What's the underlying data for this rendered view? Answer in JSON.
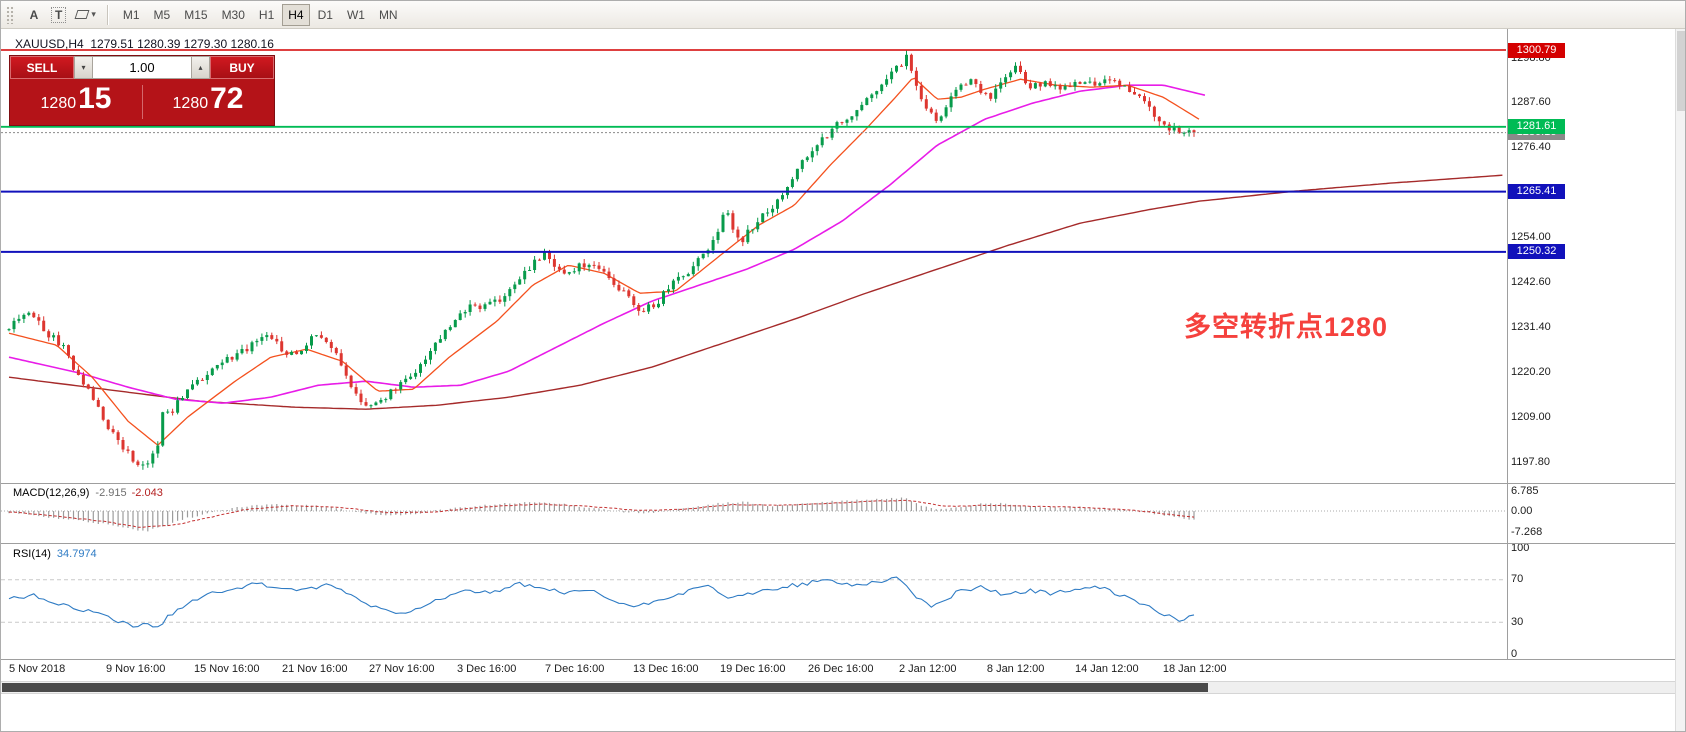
{
  "toolbar": {
    "annotate_label": "A",
    "textbox_label": "T",
    "timeframes": [
      "M1",
      "M5",
      "M15",
      "M30",
      "H1",
      "H4",
      "D1",
      "W1",
      "MN"
    ],
    "active_timeframe": "H4"
  },
  "chart": {
    "title": "XAUUSD,H4  1279.51 1280.39 1279.30 1280.16",
    "annotation": {
      "text": "多空转折点1280",
      "color": "#f5413d"
    },
    "trade_panel": {
      "sell_label": "SELL",
      "buy_label": "BUY",
      "volume": "1.00",
      "sell_price_main": "1280",
      "sell_price_big": "15",
      "buy_price_main": "1280",
      "buy_price_big": "72"
    }
  },
  "indicators": {
    "macd": {
      "label": "MACD(12,26,9)",
      "value_main": "-2.915",
      "value_signal": "-2.043",
      "axis": [
        {
          "v": 6.785,
          "label": "6.785"
        },
        {
          "v": 0,
          "label": "0.00"
        },
        {
          "v": -7.268,
          "label": "-7.268"
        }
      ]
    },
    "rsi": {
      "label": "RSI(14)",
      "value": "34.7974",
      "axis": [
        {
          "v": 100,
          "label": "100"
        },
        {
          "v": 70,
          "label": "70"
        },
        {
          "v": 30,
          "label": "30"
        },
        {
          "v": 0,
          "label": "0"
        }
      ]
    }
  },
  "chart_data": {
    "type": "candlestick",
    "symbol": "XAUUSD",
    "timeframe": "H4",
    "last_ohlc": {
      "open": 1279.51,
      "high": 1280.39,
      "low": 1279.3,
      "close": 1280.16
    },
    "colors": {
      "up": "#089b4b",
      "down": "#dd3630",
      "ma_fast": "#f4511e",
      "ma_mid": "#e81ce8",
      "ma_slow": "#a52a2a",
      "macd_hist": "#9c9c9c",
      "macd_signal": "#c43131",
      "rsi": "#2e7bc4"
    },
    "y_ticks": [
      "1298.80",
      "1287.60",
      "1276.40",
      "1254.00",
      "1242.60",
      "1231.40",
      "1220.20",
      "1209.00",
      "1197.80"
    ],
    "levels": [
      {
        "name": "resistance-line",
        "price": 1300.79,
        "label": "1300.79",
        "color": "#d40000",
        "style": "solid",
        "width": 1.6
      },
      {
        "name": "pivot-line",
        "price": 1281.61,
        "label": "1281.61",
        "color": "#00bb55",
        "style": "solid",
        "width": 1.8
      },
      {
        "name": "bid-line",
        "price": 1280.16,
        "label": "1280.16",
        "color": "#8a8a8a",
        "style": "dotted",
        "width": 1
      },
      {
        "name": "support-line-1",
        "price": 1265.41,
        "label": "1265.41",
        "color": "#1111bb",
        "style": "solid",
        "width": 2
      },
      {
        "name": "support-line-2",
        "price": 1250.32,
        "label": "1250.32",
        "color": "#1111bb",
        "style": "solid",
        "width": 2
      }
    ],
    "x_labels": [
      {
        "t": 0.0,
        "label": "5 Nov 2018"
      },
      {
        "t": 0.0815,
        "label": "9 Nov 16:00"
      },
      {
        "t": 0.1555,
        "label": "15 Nov 16:00"
      },
      {
        "t": 0.2294,
        "label": "21 Nov 16:00"
      },
      {
        "t": 0.3025,
        "label": "27 Nov 16:00"
      },
      {
        "t": 0.3765,
        "label": "3 Dec 16:00"
      },
      {
        "t": 0.4504,
        "label": "7 Dec 16:00"
      },
      {
        "t": 0.5244,
        "label": "13 Dec 16:00"
      },
      {
        "t": 0.5975,
        "label": "19 Dec 16:00"
      },
      {
        "t": 0.6714,
        "label": "26 Dec 16:00"
      },
      {
        "t": 0.7479,
        "label": "2 Jan 12:00"
      },
      {
        "t": 0.8218,
        "label": "8 Jan 12:00"
      },
      {
        "t": 0.8958,
        "label": "14 Jan 12:00"
      },
      {
        "t": 0.9697,
        "label": "18 Jan 12:00"
      }
    ],
    "price_path": [
      [
        0.0,
        1231
      ],
      [
        0.01,
        1234
      ],
      [
        0.018,
        1236
      ],
      [
        0.032,
        1230
      ],
      [
        0.045,
        1227
      ],
      [
        0.055,
        1221
      ],
      [
        0.066,
        1216
      ],
      [
        0.077,
        1210
      ],
      [
        0.09,
        1204
      ],
      [
        0.1,
        1200
      ],
      [
        0.108,
        1197.5
      ],
      [
        0.113,
        1196.5
      ],
      [
        0.12,
        1199
      ],
      [
        0.126,
        1201.5
      ],
      [
        0.13,
        1210
      ],
      [
        0.137,
        1210.5
      ],
      [
        0.145,
        1214
      ],
      [
        0.152,
        1216
      ],
      [
        0.163,
        1219
      ],
      [
        0.175,
        1222
      ],
      [
        0.187,
        1224
      ],
      [
        0.2,
        1226
      ],
      [
        0.212,
        1228
      ],
      [
        0.222,
        1229.5
      ],
      [
        0.233,
        1224
      ],
      [
        0.246,
        1226
      ],
      [
        0.259,
        1229.5
      ],
      [
        0.27,
        1228
      ],
      [
        0.281,
        1222
      ],
      [
        0.289,
        1217
      ],
      [
        0.297,
        1213.5
      ],
      [
        0.308,
        1211.5
      ],
      [
        0.32,
        1214.5
      ],
      [
        0.329,
        1217
      ],
      [
        0.338,
        1219.5
      ],
      [
        0.348,
        1222
      ],
      [
        0.358,
        1226
      ],
      [
        0.368,
        1230
      ],
      [
        0.379,
        1234
      ],
      [
        0.389,
        1236.5
      ],
      [
        0.402,
        1237
      ],
      [
        0.414,
        1238.5
      ],
      [
        0.425,
        1241.5
      ],
      [
        0.436,
        1245
      ],
      [
        0.444,
        1248
      ],
      [
        0.452,
        1250.5
      ],
      [
        0.461,
        1247
      ],
      [
        0.47,
        1245
      ],
      [
        0.48,
        1246.5
      ],
      [
        0.49,
        1247.5
      ],
      [
        0.501,
        1245
      ],
      [
        0.511,
        1242.5
      ],
      [
        0.52,
        1239.5
      ],
      [
        0.529,
        1236.5
      ],
      [
        0.538,
        1236
      ],
      [
        0.546,
        1237.5
      ],
      [
        0.555,
        1240.5
      ],
      [
        0.564,
        1243.5
      ],
      [
        0.573,
        1245.5
      ],
      [
        0.581,
        1248
      ],
      [
        0.59,
        1251
      ],
      [
        0.598,
        1256
      ],
      [
        0.606,
        1261.5
      ],
      [
        0.612,
        1255
      ],
      [
        0.617,
        1252
      ],
      [
        0.624,
        1255.5
      ],
      [
        0.631,
        1258
      ],
      [
        0.639,
        1260
      ],
      [
        0.647,
        1262.5
      ],
      [
        0.655,
        1266
      ],
      [
        0.664,
        1270
      ],
      [
        0.673,
        1274
      ],
      [
        0.681,
        1277
      ],
      [
        0.69,
        1279.5
      ],
      [
        0.699,
        1282
      ],
      [
        0.708,
        1284
      ],
      [
        0.717,
        1286.5
      ],
      [
        0.726,
        1289.5
      ],
      [
        0.735,
        1292
      ],
      [
        0.744,
        1294.5
      ],
      [
        0.752,
        1297
      ],
      [
        0.758,
        1299.2
      ],
      [
        0.764,
        1293
      ],
      [
        0.771,
        1288
      ],
      [
        0.778,
        1284.5
      ],
      [
        0.784,
        1282.5
      ],
      [
        0.79,
        1286
      ],
      [
        0.797,
        1290
      ],
      [
        0.805,
        1292.5
      ],
      [
        0.813,
        1293.5
      ],
      [
        0.82,
        1291
      ],
      [
        0.827,
        1288.5
      ],
      [
        0.834,
        1291.5
      ],
      [
        0.841,
        1294.5
      ],
      [
        0.848,
        1296.5
      ],
      [
        0.855,
        1294.5
      ],
      [
        0.862,
        1291.5
      ],
      [
        0.871,
        1292
      ],
      [
        0.88,
        1292.5
      ],
      [
        0.889,
        1291.5
      ],
      [
        0.898,
        1292
      ],
      [
        0.907,
        1292.5
      ],
      [
        0.916,
        1292.5
      ],
      [
        0.925,
        1293
      ],
      [
        0.934,
        1292.5
      ],
      [
        0.943,
        1291.5
      ],
      [
        0.952,
        1289
      ],
      [
        0.961,
        1286.5
      ],
      [
        0.97,
        1284
      ],
      [
        0.979,
        1281.5
      ],
      [
        0.988,
        1280.5
      ],
      [
        1.0,
        1280.2
      ]
    ],
    "ma_fast": [
      [
        0,
        1230
      ],
      [
        0.04,
        1227
      ],
      [
        0.07,
        1219
      ],
      [
        0.1,
        1208
      ],
      [
        0.125,
        1202
      ],
      [
        0.15,
        1209
      ],
      [
        0.19,
        1218
      ],
      [
        0.22,
        1224
      ],
      [
        0.25,
        1226
      ],
      [
        0.28,
        1223
      ],
      [
        0.31,
        1215.5
      ],
      [
        0.34,
        1216
      ],
      [
        0.37,
        1224
      ],
      [
        0.41,
        1233
      ],
      [
        0.44,
        1242
      ],
      [
        0.47,
        1247
      ],
      [
        0.5,
        1245
      ],
      [
        0.53,
        1240
      ],
      [
        0.56,
        1240.5
      ],
      [
        0.6,
        1250
      ],
      [
        0.63,
        1257
      ],
      [
        0.66,
        1262
      ],
      [
        0.69,
        1272
      ],
      [
        0.72,
        1281
      ],
      [
        0.745,
        1289
      ],
      [
        0.76,
        1294
      ],
      [
        0.78,
        1288.5
      ],
      [
        0.8,
        1289
      ],
      [
        0.82,
        1291
      ],
      [
        0.85,
        1293.5
      ],
      [
        0.88,
        1292
      ],
      [
        0.91,
        1291.5
      ],
      [
        0.94,
        1292
      ],
      [
        0.97,
        1289
      ],
      [
        1.0,
        1283.5
      ]
    ],
    "ma_mid": [
      [
        0,
        1224
      ],
      [
        0.06,
        1220
      ],
      [
        0.1,
        1216.5
      ],
      [
        0.14,
        1213.5
      ],
      [
        0.18,
        1212.5
      ],
      [
        0.22,
        1214
      ],
      [
        0.26,
        1217
      ],
      [
        0.3,
        1218
      ],
      [
        0.34,
        1216.5
      ],
      [
        0.38,
        1217
      ],
      [
        0.42,
        1220.5
      ],
      [
        0.46,
        1226.5
      ],
      [
        0.5,
        1232.5
      ],
      [
        0.54,
        1238
      ],
      [
        0.58,
        1242
      ],
      [
        0.62,
        1246
      ],
      [
        0.66,
        1251
      ],
      [
        0.7,
        1258
      ],
      [
        0.74,
        1267
      ],
      [
        0.78,
        1277
      ],
      [
        0.82,
        1283.5
      ],
      [
        0.86,
        1287.5
      ],
      [
        0.9,
        1290.5
      ],
      [
        0.94,
        1292
      ],
      [
        0.97,
        1292
      ],
      [
        1.005,
        1289.5
      ]
    ],
    "ma_slow": [
      [
        0,
        1219
      ],
      [
        0.08,
        1216
      ],
      [
        0.16,
        1213
      ],
      [
        0.24,
        1211.5
      ],
      [
        0.3,
        1211
      ],
      [
        0.36,
        1212
      ],
      [
        0.42,
        1214
      ],
      [
        0.48,
        1217
      ],
      [
        0.54,
        1221.5
      ],
      [
        0.6,
        1227.5
      ],
      [
        0.66,
        1233.5
      ],
      [
        0.72,
        1240
      ],
      [
        0.78,
        1246
      ],
      [
        0.84,
        1252
      ],
      [
        0.9,
        1257.5
      ],
      [
        0.96,
        1261
      ],
      [
        1.0,
        1263
      ],
      [
        1.08,
        1265.5
      ],
      [
        1.16,
        1267.5
      ],
      [
        1.255,
        1269.5
      ]
    ],
    "macd_range": {
      "max": 6.785,
      "min": -7.268
    },
    "macd_hist": [
      [
        0,
        -0.5
      ],
      [
        0.02,
        -1.5
      ],
      [
        0.04,
        -2.5
      ],
      [
        0.06,
        -3.2
      ],
      [
        0.08,
        -4.5
      ],
      [
        0.1,
        -6.0
      ],
      [
        0.115,
        -7.0
      ],
      [
        0.13,
        -5.5
      ],
      [
        0.15,
        -2.5
      ],
      [
        0.17,
        -0.5
      ],
      [
        0.19,
        1.0
      ],
      [
        0.21,
        2.0
      ],
      [
        0.23,
        2.4
      ],
      [
        0.26,
        1.6
      ],
      [
        0.28,
        0.6
      ],
      [
        0.3,
        -0.8
      ],
      [
        0.32,
        -1.8
      ],
      [
        0.34,
        -1.2
      ],
      [
        0.36,
        0.2
      ],
      [
        0.39,
        1.5
      ],
      [
        0.42,
        2.6
      ],
      [
        0.45,
        3.0
      ],
      [
        0.47,
        2.2
      ],
      [
        0.5,
        0.8
      ],
      [
        0.52,
        -0.3
      ],
      [
        0.54,
        -0.8
      ],
      [
        0.56,
        0.3
      ],
      [
        0.58,
        1.4
      ],
      [
        0.6,
        2.6
      ],
      [
        0.62,
        3.2
      ],
      [
        0.64,
        1.8
      ],
      [
        0.66,
        2.2
      ],
      [
        0.68,
        2.8
      ],
      [
        0.7,
        3.4
      ],
      [
        0.72,
        3.8
      ],
      [
        0.74,
        4.2
      ],
      [
        0.755,
        4.6
      ],
      [
        0.77,
        2.0
      ],
      [
        0.785,
        0.6
      ],
      [
        0.8,
        1.4
      ],
      [
        0.82,
        2.4
      ],
      [
        0.84,
        2.6
      ],
      [
        0.86,
        1.6
      ],
      [
        0.88,
        1.2
      ],
      [
        0.9,
        1.4
      ],
      [
        0.92,
        1.0
      ],
      [
        0.94,
        0.4
      ],
      [
        0.955,
        -0.4
      ],
      [
        0.97,
        -1.2
      ],
      [
        0.985,
        -2.2
      ],
      [
        1.0,
        -2.915
      ]
    ],
    "macd_signal": [
      [
        0,
        -0.3
      ],
      [
        0.04,
        -1.8
      ],
      [
        0.08,
        -3.6
      ],
      [
        0.11,
        -5.6
      ],
      [
        0.14,
        -4.8
      ],
      [
        0.17,
        -2.2
      ],
      [
        0.2,
        0.6
      ],
      [
        0.24,
        1.8
      ],
      [
        0.28,
        1.2
      ],
      [
        0.32,
        -0.6
      ],
      [
        0.36,
        -0.3
      ],
      [
        0.4,
        1.4
      ],
      [
        0.45,
        2.4
      ],
      [
        0.49,
        1.6
      ],
      [
        0.53,
        0.2
      ],
      [
        0.57,
        0.6
      ],
      [
        0.61,
        2.2
      ],
      [
        0.65,
        2.0
      ],
      [
        0.69,
        2.6
      ],
      [
        0.73,
        3.4
      ],
      [
        0.76,
        3.6
      ],
      [
        0.79,
        1.6
      ],
      [
        0.83,
        2.0
      ],
      [
        0.87,
        1.6
      ],
      [
        0.91,
        1.2
      ],
      [
        0.95,
        0.2
      ],
      [
        0.98,
        -1.2
      ],
      [
        1.0,
        -2.043
      ]
    ],
    "rsi_levels": [
      70,
      30
    ],
    "rsi_line": [
      [
        0,
        52
      ],
      [
        0.02,
        56
      ],
      [
        0.04,
        48
      ],
      [
        0.06,
        42
      ],
      [
        0.08,
        36
      ],
      [
        0.095,
        30
      ],
      [
        0.105,
        26
      ],
      [
        0.115,
        28
      ],
      [
        0.125,
        24
      ],
      [
        0.135,
        36
      ],
      [
        0.15,
        48
      ],
      [
        0.17,
        57
      ],
      [
        0.19,
        62
      ],
      [
        0.21,
        66
      ],
      [
        0.23,
        62
      ],
      [
        0.25,
        60
      ],
      [
        0.27,
        65
      ],
      [
        0.285,
        58
      ],
      [
        0.3,
        48
      ],
      [
        0.315,
        42
      ],
      [
        0.33,
        38
      ],
      [
        0.35,
        46
      ],
      [
        0.37,
        55
      ],
      [
        0.39,
        60
      ],
      [
        0.41,
        58
      ],
      [
        0.43,
        66
      ],
      [
        0.45,
        62
      ],
      [
        0.47,
        57
      ],
      [
        0.49,
        60
      ],
      [
        0.51,
        50
      ],
      [
        0.53,
        44
      ],
      [
        0.55,
        52
      ],
      [
        0.57,
        58
      ],
      [
        0.59,
        64
      ],
      [
        0.61,
        52
      ],
      [
        0.63,
        58
      ],
      [
        0.65,
        63
      ],
      [
        0.67,
        66
      ],
      [
        0.69,
        70
      ],
      [
        0.71,
        65
      ],
      [
        0.73,
        68
      ],
      [
        0.75,
        72
      ],
      [
        0.765,
        55
      ],
      [
        0.78,
        44
      ],
      [
        0.8,
        58
      ],
      [
        0.82,
        64
      ],
      [
        0.84,
        56
      ],
      [
        0.86,
        60
      ],
      [
        0.88,
        57
      ],
      [
        0.9,
        60
      ],
      [
        0.92,
        63
      ],
      [
        0.94,
        55
      ],
      [
        0.955,
        48
      ],
      [
        0.97,
        40
      ],
      [
        0.985,
        32
      ],
      [
        1.0,
        35
      ]
    ]
  }
}
